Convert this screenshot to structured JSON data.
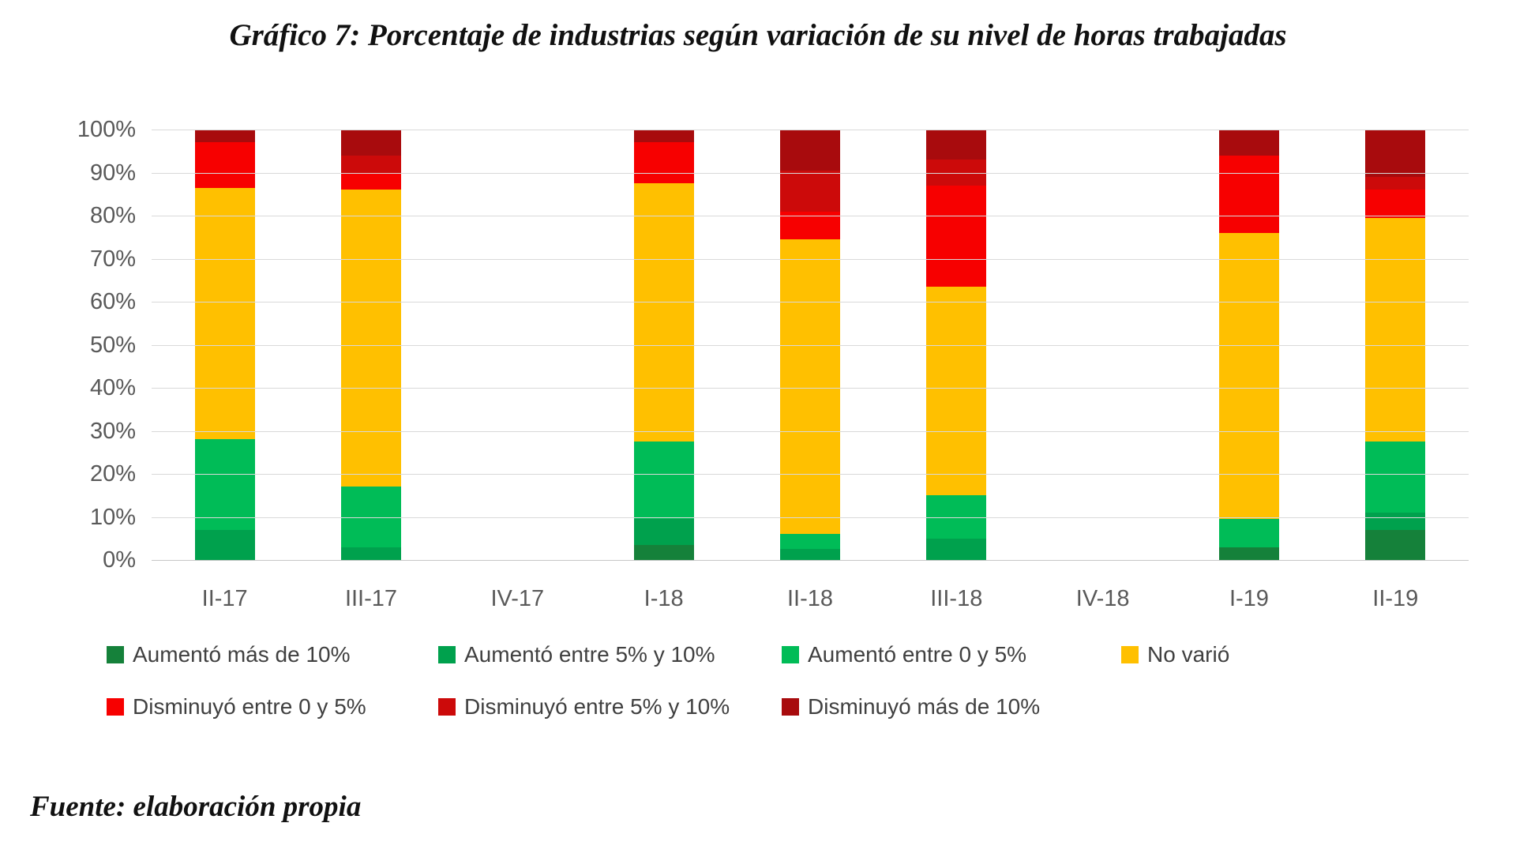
{
  "title": "Gráfico 7: Porcentaje de industrias según variación de su nivel de horas trabajadas",
  "source_note": "Fuente: elaboración propia",
  "chart_data": {
    "type": "bar",
    "stacked": true,
    "stacked_total": 100,
    "title": "Gráfico 7: Porcentaje de industrias según variación de su nivel de horas trabajadas",
    "xlabel": "",
    "ylabel": "",
    "ylim": [
      0,
      100
    ],
    "grid": true,
    "legend_position": "bottom",
    "y_ticks": [
      "100%",
      "90%",
      "80%",
      "70%",
      "60%",
      "50%",
      "40%",
      "30%",
      "20%",
      "10%",
      "0%"
    ],
    "categories": [
      "II-17",
      "III-17",
      "IV-17",
      "I-18",
      "II-18",
      "III-18",
      "IV-18",
      "I-19",
      "II-19"
    ],
    "series": [
      {
        "name": "Aumentó más de 10%",
        "color": "#15813A",
        "values": [
          0,
          0,
          0,
          3.5,
          0,
          0,
          0,
          3,
          7
        ]
      },
      {
        "name": "Aumentó entre 5% y 10%",
        "color": "#00A14D",
        "values": [
          7,
          3,
          0,
          6,
          2.5,
          5,
          0,
          0,
          4
        ]
      },
      {
        "name": "Aumentó entre 0 y 5%",
        "color": "#00BC57",
        "values": [
          21,
          14,
          0,
          18,
          3.5,
          10,
          0,
          6.5,
          16.5
        ]
      },
      {
        "name": "No varió",
        "color": "#FFC000",
        "values": [
          58.5,
          69,
          0,
          60,
          68.5,
          48.5,
          0,
          66.5,
          52
        ]
      },
      {
        "name": "Disminuyó entre 0 y 5%",
        "color": "#F70000",
        "values": [
          10.5,
          4,
          0,
          9.5,
          6.5,
          23.5,
          0,
          18,
          6.5
        ]
      },
      {
        "name": "Disminuyó entre 5% y 10%",
        "color": "#CC0A0A",
        "values": [
          0,
          4,
          0,
          0,
          9.5,
          6,
          0,
          0,
          3
        ]
      },
      {
        "name": "Disminuyó más de 10%",
        "color": "#A80B0D",
        "values": [
          3,
          6,
          0,
          3,
          9.5,
          7,
          0,
          6,
          11
        ]
      }
    ],
    "legend_rows": [
      [
        0,
        1,
        2,
        3
      ],
      [
        4,
        5,
        6
      ]
    ],
    "style": {
      "gridline_color": "#D9D9D9",
      "axis_label_color": "#595959",
      "legend_text_color": "#404040"
    }
  }
}
